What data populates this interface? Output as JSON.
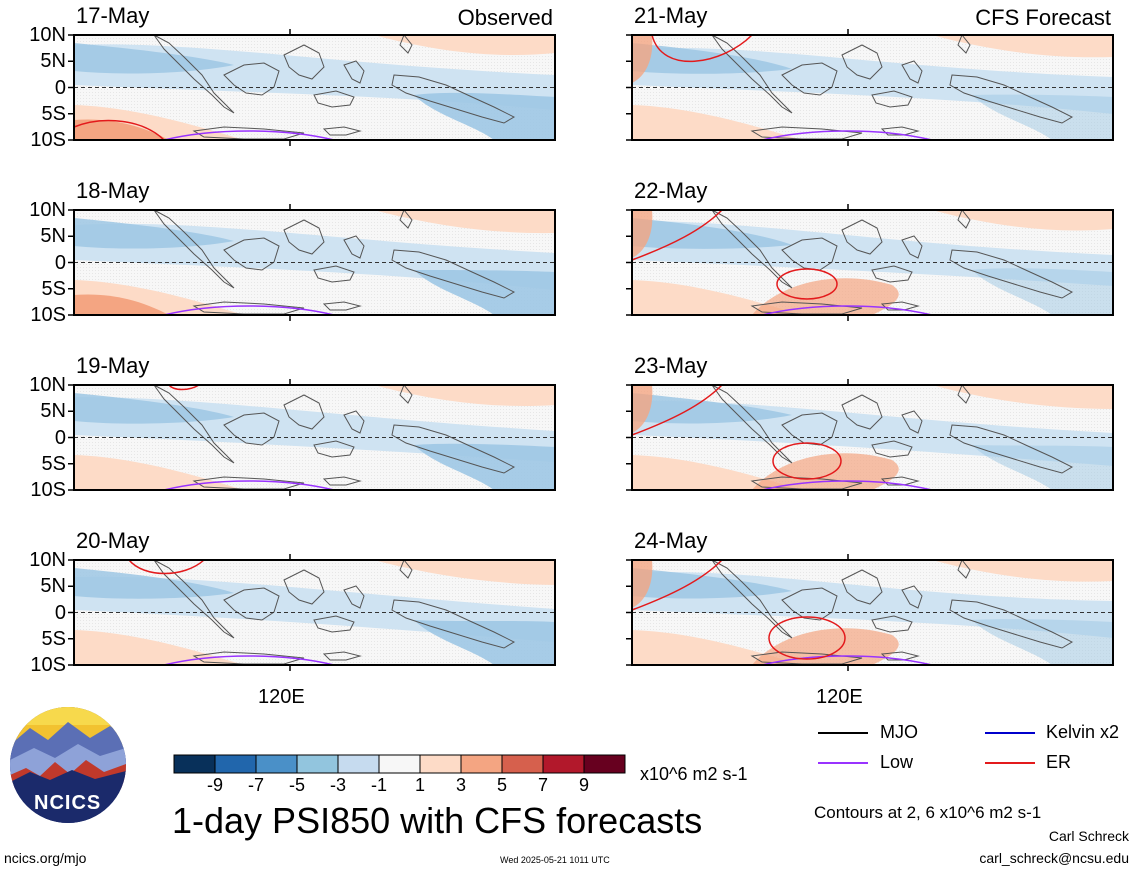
{
  "panels": [
    {
      "date": "17-May",
      "tag": "Observed"
    },
    {
      "date": "18-May"
    },
    {
      "date": "19-May"
    },
    {
      "date": "20-May"
    },
    {
      "date": "21-May",
      "tag": "CFS Forecast"
    },
    {
      "date": "22-May"
    },
    {
      "date": "23-May"
    },
    {
      "date": "24-May"
    }
  ],
  "lat_labels": [
    "10N",
    "5N",
    "0",
    "5S",
    "10S"
  ],
  "lon_label": "120E",
  "colorbar": {
    "colors": [
      "#08305a",
      "#2166ac",
      "#4a90c8",
      "#92c5de",
      "#c6dbef",
      "#f7f7f7",
      "#fddbc7",
      "#f4a582",
      "#d6604d",
      "#b2182b",
      "#67001f"
    ],
    "labels": [
      "-9",
      "-7",
      "-5",
      "-3",
      "-1",
      "1",
      "3",
      "5",
      "7",
      "9"
    ],
    "units": "x10^6 m2 s-1"
  },
  "legend": [
    {
      "label": "MJO",
      "color": "#000000"
    },
    {
      "label": "Kelvin x2",
      "color": "#0000cc"
    },
    {
      "label": "Low",
      "color": "#9933ff"
    },
    {
      "label": "ER",
      "color": "#e31a1c"
    }
  ],
  "title": "1-day PSI850 with CFS forecasts",
  "contours_note": "Contours at 2, 6 x10^6 m2 s-1",
  "author": "Carl Schreck",
  "email": "carl_schreck@ncsu.edu",
  "url": "ncics.org/mjo",
  "timestamp": "Wed 2025-05-21 1011 UTC",
  "logo_text": "NCICS"
}
